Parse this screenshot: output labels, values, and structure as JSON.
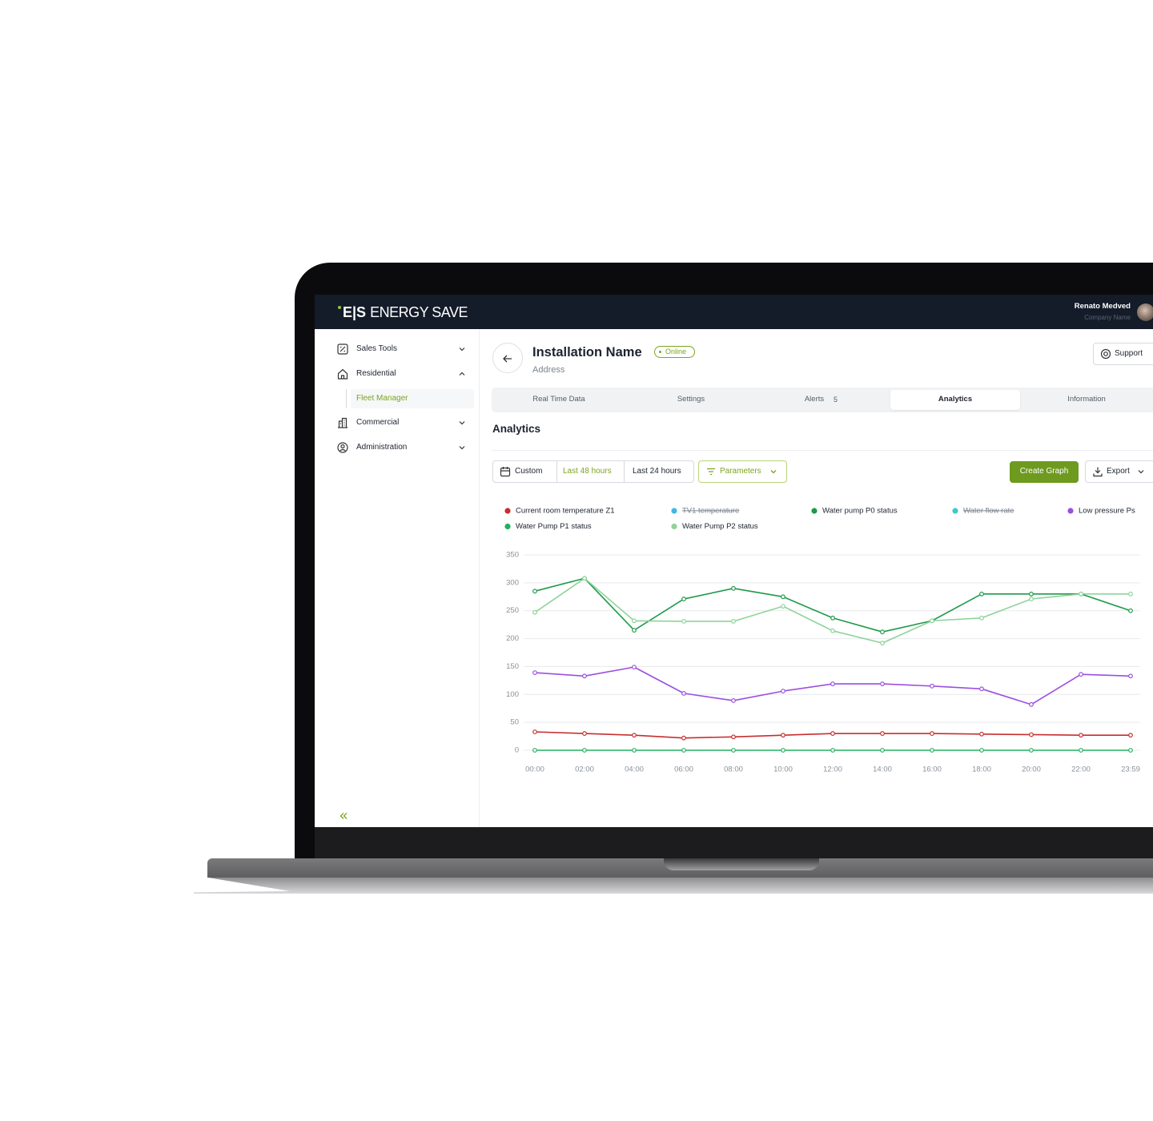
{
  "header": {
    "brand_mark": "E|S",
    "brand": "ENERGY SAVE",
    "user": "Renato Medved",
    "company": "Company Name"
  },
  "sidebar": {
    "items": [
      "Sales Tools",
      "Residential",
      "Fleet Manager",
      "Commercial",
      "Administration"
    ]
  },
  "page": {
    "title": "Installation Name",
    "status": "Online",
    "address": "Address",
    "support": "Support"
  },
  "tabs": {
    "items": [
      "Real Time Data",
      "Settings",
      "Alerts",
      "Analytics",
      "Information"
    ],
    "alerts_badge": 5
  },
  "section_title": "Analytics",
  "filters": {
    "custom": "Custom",
    "last_48": "Last 48 hours",
    "last_24": "Last 24 hours",
    "parameters": "Parameters"
  },
  "actions": {
    "create": "Create Graph",
    "export": "Export"
  },
  "chart_data": {
    "type": "line",
    "categories": [
      "00:00",
      "02:00",
      "04:00",
      "06:00",
      "08:00",
      "10:00",
      "12:00",
      "14:00",
      "16:00",
      "18:00",
      "20:00",
      "22:00",
      "23:59"
    ],
    "series": [
      {
        "name": "Current room temperature Z1",
        "color": "#c62f2f",
        "values": [
          33,
          30,
          27,
          22,
          24,
          27,
          30,
          30,
          30,
          29,
          28,
          27,
          27
        ]
      },
      {
        "name": "TV1 temperature",
        "color": "#3fb8e8",
        "hidden": true,
        "values": [
          null,
          null,
          null,
          null,
          null,
          null,
          null,
          null,
          null,
          null,
          null,
          null,
          null
        ]
      },
      {
        "name": "Water pump P0 status",
        "color": "#1f9a4a",
        "values": [
          285,
          308,
          215,
          271,
          290,
          275,
          237,
          212,
          232,
          280,
          280,
          280,
          250
        ]
      },
      {
        "name": "Water flow rate",
        "color": "#3ec9c9",
        "hidden": true,
        "values": [
          null,
          null,
          null,
          null,
          null,
          null,
          null,
          null,
          null,
          null,
          null,
          null,
          null
        ]
      },
      {
        "name": "Low pressure Ps",
        "color": "#9b4fe0",
        "values": [
          139,
          133,
          149,
          102,
          89,
          106,
          119,
          119,
          115,
          110,
          82,
          136,
          133
        ]
      },
      {
        "name": "Water Pump P1 status",
        "color": "#22b060",
        "values": [
          0,
          0,
          0,
          0,
          0,
          0,
          0,
          0,
          0,
          0,
          0,
          0,
          0
        ]
      },
      {
        "name": "Water Pump P2 status",
        "color": "#8fd39a",
        "values": [
          247,
          308,
          232,
          231,
          231,
          258,
          214,
          192,
          232,
          237,
          271,
          280,
          280
        ]
      }
    ],
    "ylim": [
      0,
      350
    ],
    "yticks": [
      0,
      50,
      100,
      150,
      200,
      250,
      300,
      350
    ],
    "grid": true
  }
}
